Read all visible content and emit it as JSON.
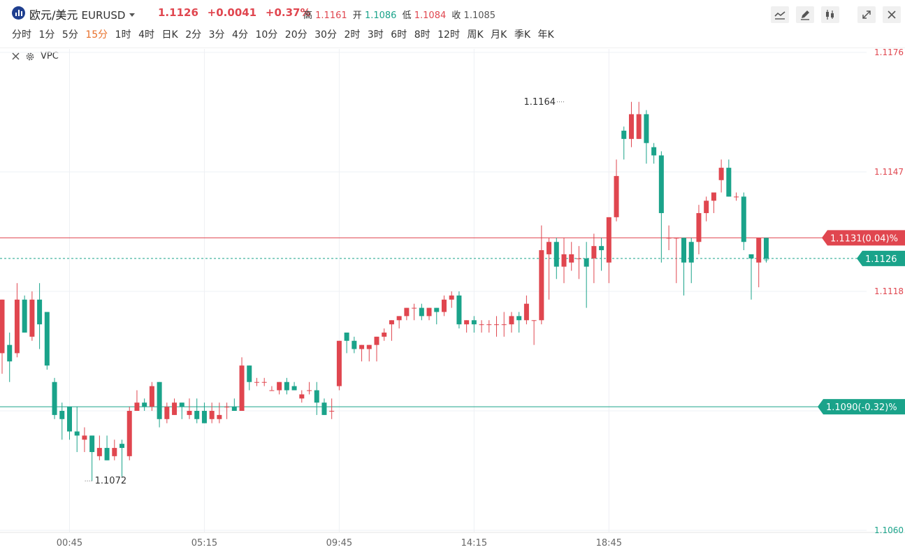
{
  "header": {
    "name": "欧元/美元",
    "symbol": "EURUSD",
    "price": "1.1126",
    "change": "+0.0041",
    "change_pct": "+0.37%",
    "high_label": "高",
    "high": "1.1161",
    "open_label": "开",
    "open": "1.1086",
    "low_label": "低",
    "low": "1.1084",
    "close_label": "收",
    "close": "1.1085"
  },
  "toolbar": [
    "line-tool-icon",
    "pen-icon",
    "candle-type-icon",
    "fullscreen-icon",
    "close-icon"
  ],
  "timeframes": [
    "分时",
    "1分",
    "5分",
    "15分",
    "1时",
    "4时",
    "日K",
    "2分",
    "3分",
    "4分",
    "10分",
    "20分",
    "30分",
    "2时",
    "3时",
    "6时",
    "8时",
    "12时",
    "周K",
    "月K",
    "季K",
    "年K"
  ],
  "active_timeframe": "15分",
  "indicator": {
    "label": "VPC"
  },
  "colors": {
    "up": "#e0464f",
    "down": "#1aa38a",
    "grid": "#eef0f4",
    "axis_text": "#e0464f",
    "axis_text_down": "#1aa38a"
  },
  "chart_data": {
    "type": "candlestick",
    "instrument": "EURUSD",
    "interval": "15分",
    "y_ticks": [
      "1.1176",
      "1.1147",
      "1.1118",
      "1.1089",
      "1.1060"
    ],
    "ylim": [
      1.106,
      1.1176
    ],
    "x_ticks": [
      "00:45",
      "05:15",
      "09:45",
      "14:15",
      "18:45"
    ],
    "x_tick_index": [
      9,
      27,
      45,
      63,
      81
    ],
    "horizontal_lines": [
      {
        "label": "1.1131(0.04)%",
        "value": 1.1131,
        "color": "#e0464f"
      },
      {
        "label": "1.1090(-0.32)%",
        "value": 1.109,
        "color": "#1aa38a"
      }
    ],
    "current_price": {
      "label": "1.1126",
      "value": 1.1126,
      "color": "#1aa38a"
    },
    "annotations": [
      {
        "label": "1.1164",
        "value": 1.1164,
        "index": 75
      },
      {
        "label": "1.1072",
        "value": 1.1072,
        "index": 12
      }
    ],
    "candles": [
      [
        1.1103,
        1.1116,
        1.1098,
        1.1116
      ],
      [
        1.1105,
        1.1101,
        1.1096,
        1.1108
      ],
      [
        1.1103,
        1.1116,
        1.1102,
        1.112
      ],
      [
        1.1116,
        1.1108,
        1.1108,
        1.1117
      ],
      [
        1.1107,
        1.1116,
        1.1106,
        1.1118
      ],
      [
        1.1116,
        1.111,
        1.1104,
        1.112
      ],
      [
        1.1113,
        1.11,
        1.1099,
        1.1113
      ],
      [
        1.1096,
        1.1088,
        1.1087,
        1.1097
      ],
      [
        1.1089,
        1.1087,
        1.1082,
        1.1091
      ],
      [
        1.109,
        1.1084,
        1.1082,
        1.109
      ],
      [
        1.1084,
        1.1083,
        1.1079,
        1.109
      ],
      [
        1.1082,
        1.1083,
        1.1079,
        1.1085
      ],
      [
        1.1083,
        1.1079,
        1.1072,
        1.1083
      ],
      [
        1.1078,
        1.108,
        1.1077,
        1.1083
      ],
      [
        1.108,
        1.1077,
        1.1077,
        1.1083
      ],
      [
        1.1078,
        1.108,
        1.1077,
        1.1082
      ],
      [
        1.1081,
        1.108,
        1.1073,
        1.1082
      ],
      [
        1.1078,
        1.1089,
        1.1077,
        1.109
      ],
      [
        1.1089,
        1.1091,
        1.1089,
        1.1094
      ],
      [
        1.1091,
        1.109,
        1.1089,
        1.1092
      ],
      [
        1.109,
        1.1095,
        1.1089,
        1.1096
      ],
      [
        1.1096,
        1.1087,
        1.1085,
        1.1096
      ],
      [
        1.1087,
        1.109,
        1.1086,
        1.1091
      ],
      [
        1.1088,
        1.1091,
        1.1088,
        1.1092
      ],
      [
        1.1091,
        1.109,
        1.1087,
        1.1091
      ],
      [
        1.1088,
        1.1089,
        1.1087,
        1.1092
      ],
      [
        1.1089,
        1.1087,
        1.1086,
        1.1092
      ],
      [
        1.1089,
        1.1086,
        1.1086,
        1.1091
      ],
      [
        1.1087,
        1.1089,
        1.1086,
        1.1091
      ],
      [
        1.1087,
        1.1088,
        1.1086,
        1.1091
      ],
      [
        1.109,
        1.109,
        1.1087,
        1.1091
      ],
      [
        1.109,
        1.1089,
        1.1089,
        1.1092
      ],
      [
        1.1089,
        1.11,
        1.1089,
        1.1102
      ],
      [
        1.11,
        1.1096,
        1.1094,
        1.11
      ],
      [
        1.1096,
        1.1096,
        1.1095,
        1.1097
      ],
      [
        1.1096,
        1.1096,
        1.1095,
        1.1097
      ],
      [
        1.1094,
        1.1094,
        1.1094,
        1.1095
      ],
      [
        1.1094,
        1.1096,
        1.1093,
        1.1096
      ],
      [
        1.1096,
        1.1094,
        1.1093,
        1.1097
      ],
      [
        1.1095,
        1.1094,
        1.1094,
        1.1096
      ],
      [
        1.1092,
        1.1093,
        1.1091,
        1.1094
      ],
      [
        1.1094,
        1.1094,
        1.1093,
        1.1096
      ],
      [
        1.1094,
        1.1091,
        1.1088,
        1.1096
      ],
      [
        1.1091,
        1.1088,
        1.1088,
        1.1092
      ],
      [
        1.1089,
        1.1089,
        1.1087,
        1.1092
      ],
      [
        1.1095,
        1.1106,
        1.1094,
        1.1106
      ],
      [
        1.1108,
        1.1106,
        1.1103,
        1.1108
      ],
      [
        1.1106,
        1.1104,
        1.1103,
        1.1107
      ],
      [
        1.1104,
        1.1105,
        1.1101,
        1.1105
      ],
      [
        1.1104,
        1.1105,
        1.1101,
        1.1105
      ],
      [
        1.1105,
        1.1107,
        1.1101,
        1.1107
      ],
      [
        1.1107,
        1.1108,
        1.1106,
        1.1109
      ],
      [
        1.111,
        1.1111,
        1.1106,
        1.1111
      ],
      [
        1.1111,
        1.1112,
        1.1109,
        1.1112
      ],
      [
        1.1112,
        1.1114,
        1.1111,
        1.1114
      ],
      [
        1.1114,
        1.1114,
        1.1111,
        1.1115
      ],
      [
        1.1114,
        1.1112,
        1.1111,
        1.1115
      ],
      [
        1.1112,
        1.1114,
        1.1111,
        1.1114
      ],
      [
        1.1114,
        1.1113,
        1.111,
        1.1114
      ],
      [
        1.1113,
        1.1116,
        1.1112,
        1.1117
      ],
      [
        1.1116,
        1.1117,
        1.1114,
        1.1118
      ],
      [
        1.1117,
        1.111,
        1.1109,
        1.1118
      ],
      [
        1.111,
        1.1111,
        1.1108,
        1.1111
      ],
      [
        1.1111,
        1.111,
        1.1108,
        1.1112
      ],
      [
        1.111,
        1.111,
        1.1108,
        1.1111
      ],
      [
        1.111,
        1.111,
        1.1108,
        1.1111
      ],
      [
        1.111,
        1.111,
        1.1107,
        1.1112
      ],
      [
        1.111,
        1.111,
        1.1107,
        1.1113
      ],
      [
        1.111,
        1.1112,
        1.1108,
        1.1113
      ],
      [
        1.1112,
        1.1111,
        1.1108,
        1.1113
      ],
      [
        1.1111,
        1.1115,
        1.111,
        1.1117
      ],
      [
        1.1111,
        1.1111,
        1.1105,
        1.1111
      ],
      [
        1.1111,
        1.1128,
        1.111,
        1.1134
      ],
      [
        1.1127,
        1.113,
        1.1116,
        1.1131
      ],
      [
        1.113,
        1.1124,
        1.1121,
        1.1131
      ],
      [
        1.1124,
        1.1127,
        1.112,
        1.1131
      ],
      [
        1.1125,
        1.1127,
        1.1123,
        1.113
      ],
      [
        1.1126,
        1.1126,
        1.1121,
        1.1129
      ],
      [
        1.1126,
        1.1124,
        1.1114,
        1.113
      ],
      [
        1.1126,
        1.1129,
        1.112,
        1.1132
      ],
      [
        1.1129,
        1.1128,
        1.1123,
        1.1131
      ],
      [
        1.1125,
        1.1136,
        1.112,
        1.1136
      ],
      [
        1.1136,
        1.1146,
        1.1135,
        1.115
      ],
      [
        1.1157,
        1.1155,
        1.115,
        1.1158
      ],
      [
        1.1155,
        1.1161,
        1.1153,
        1.1164
      ],
      [
        1.1155,
        1.1161,
        1.1155,
        1.1164
      ],
      [
        1.1161,
        1.1154,
        1.1149,
        1.1162
      ],
      [
        1.1153,
        1.1151,
        1.1149,
        1.1154
      ],
      [
        1.1151,
        1.1137,
        1.1125,
        1.1152
      ],
      [
        1.1131,
        1.1131,
        1.1128,
        1.1134
      ],
      [
        1.1131,
        1.1131,
        1.112,
        1.1131
      ],
      [
        1.1131,
        1.1125,
        1.1117,
        1.1131
      ],
      [
        1.113,
        1.1125,
        1.112,
        1.1131
      ],
      [
        1.113,
        1.1137,
        1.1127,
        1.1139
      ],
      [
        1.1137,
        1.114,
        1.1135,
        1.1141
      ],
      [
        1.114,
        1.1142,
        1.1137,
        1.1142
      ],
      [
        1.1145,
        1.1148,
        1.1142,
        1.115
      ],
      [
        1.1148,
        1.1141,
        1.1141,
        1.115
      ],
      [
        1.1141,
        1.1141,
        1.114,
        1.1142
      ],
      [
        1.1141,
        1.113,
        1.1128,
        1.1142
      ],
      [
        1.1127,
        1.1126,
        1.1116,
        1.1127
      ],
      [
        1.1125,
        1.1131,
        1.1119,
        1.1131
      ],
      [
        1.1131,
        1.1126,
        1.1125,
        1.1131
      ]
    ]
  }
}
